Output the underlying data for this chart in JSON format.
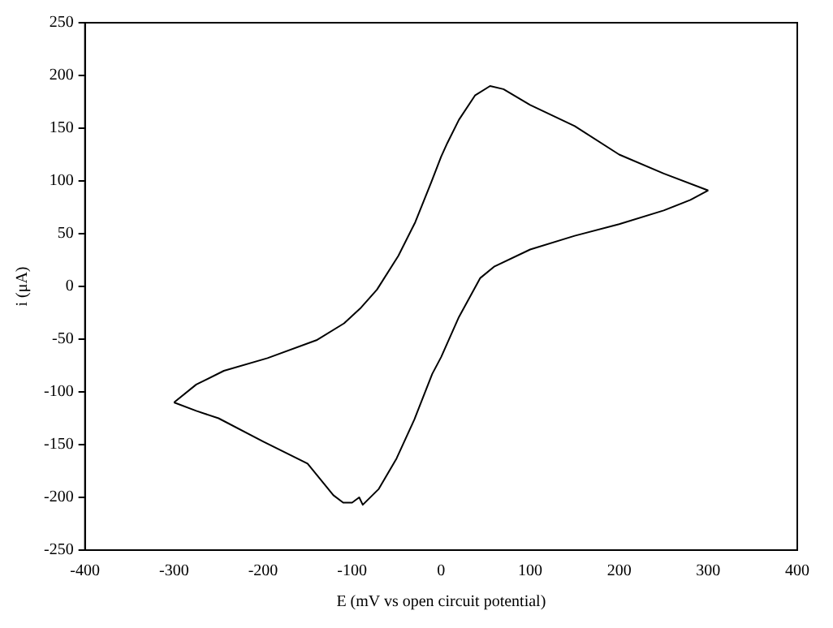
{
  "chart_data": {
    "type": "line",
    "xlabel": "E (mV vs open circuit potential)",
    "ylabel": "i (μA)",
    "xlim": [
      -400,
      400
    ],
    "xticks": [
      -400,
      -300,
      -200,
      -100,
      0,
      100,
      200,
      300,
      400
    ],
    "ylim": [
      -250,
      250
    ],
    "yticks": [
      -250,
      -200,
      -150,
      -100,
      -50,
      0,
      50,
      100,
      150,
      200,
      250
    ],
    "grid": false,
    "legend": false,
    "marker": "none",
    "line_style": "solid",
    "series": [
      {
        "color": "#000000",
        "x": [
          300,
          250,
          200,
          150,
          100,
          70,
          55,
          38,
          20,
          7,
          0,
          -11,
          -29,
          -48,
          -72,
          -91,
          -109,
          -140,
          -195,
          -244,
          -275,
          -300
        ],
        "values": [
          91,
          107,
          125,
          152,
          172,
          187,
          190,
          181,
          158,
          136,
          123,
          99,
          61,
          29,
          -3,
          -21,
          -35,
          -51,
          -68,
          -80,
          -93,
          -110
        ]
      },
      {
        "color": "#000000",
        "x": [
          -300,
          -275,
          -250,
          -200,
          -150,
          -121,
          -110,
          -100,
          -92,
          -88,
          -70,
          -50,
          -30,
          -10,
          0,
          20,
          44,
          60,
          100,
          150,
          200,
          250,
          280,
          300
        ],
        "values": [
          -110,
          -118,
          -125,
          -147,
          -168,
          -198,
          -205,
          -205,
          -200,
          -207,
          -192,
          -163,
          -126,
          -83,
          -67,
          -29,
          8,
          19,
          35,
          48,
          59,
          72,
          82,
          91
        ]
      }
    ]
  }
}
